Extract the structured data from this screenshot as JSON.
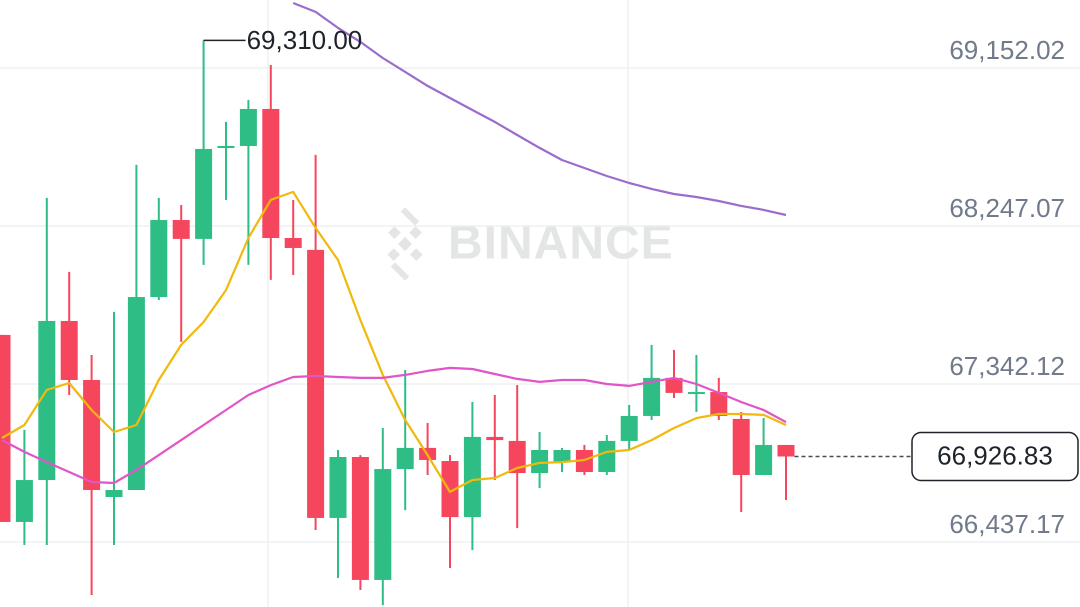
{
  "chart_data": {
    "type": "candlestick",
    "watermark": "BINANCE",
    "up_color": "#2ebd85",
    "down_color": "#f6465d",
    "open": [
      67623,
      66552,
      66792,
      67703,
      67365,
      66695,
      66735,
      67840,
      68281,
      68173,
      68694,
      68705,
      68917,
      68178,
      68110,
      66575,
      66924,
      66220,
      66855,
      66976,
      66901,
      66580,
      67039,
      67016,
      66832,
      66895,
      66964,
      66838,
      67016,
      67159,
      67377,
      67285,
      67296,
      67142,
      66821,
      66993
    ],
    "high": [
      67623,
      67079,
      68408,
      67984,
      67508,
      67755,
      68597,
      68408,
      68367,
      69310,
      68843,
      68969,
      69169,
      68396,
      68654,
      66964,
      66935,
      67090,
      67422,
      67119,
      66935,
      67239,
      67279,
      67336,
      67067,
      66976,
      66993,
      67050,
      67222,
      67566,
      67537,
      67508,
      67377,
      67182,
      67147,
      66993
    ],
    "low": [
      66552,
      66420,
      66420,
      67279,
      66134,
      66420,
      66735,
      67823,
      67583,
      68024,
      68396,
      68024,
      67938,
      67966,
      66506,
      66231,
      66162,
      66076,
      66620,
      66821,
      66288,
      66391,
      66792,
      66517,
      66746,
      66838,
      66821,
      66821,
      66964,
      67136,
      67262,
      67182,
      67136,
      66609,
      66821,
      66678
    ],
    "close": [
      66552,
      66792,
      67703,
      67365,
      66735,
      66735,
      67840,
      68281,
      68173,
      68688,
      68705,
      68917,
      68178,
      68121,
      66575,
      66924,
      66220,
      66855,
      66976,
      66907,
      66580,
      67039,
      67021,
      66832,
      66964,
      66964,
      66838,
      67016,
      67159,
      67377,
      67291,
      67296,
      67159,
      66821,
      66993,
      66926.83
    ],
    "moving_averages": [
      {
        "color": "#f0b90b",
        "values": [
          67033,
          67107,
          67308,
          67348,
          67193,
          67067,
          67107,
          67365,
          67566,
          67697,
          67880,
          68178,
          68396,
          68442,
          68236,
          68052,
          67708,
          67394,
          67136,
          66935,
          66724,
          66792,
          66804,
          66861,
          66890,
          66895,
          66907,
          66953,
          66964,
          67021,
          67090,
          67147,
          67170,
          67170,
          67165,
          67107
        ]
      },
      {
        "color": "#e056c8",
        "values": [
          67021,
          66953,
          66895,
          66838,
          66781,
          66775,
          66850,
          66935,
          67021,
          67107,
          67193,
          67279,
          67336,
          67382,
          67388,
          67382,
          67377,
          67377,
          67394,
          67417,
          67434,
          67428,
          67399,
          67371,
          67354,
          67365,
          67365,
          67342,
          67331,
          67354,
          67377,
          67342,
          67291,
          67239,
          67193,
          67124
        ]
      },
      {
        "color": "#9c6ccd",
        "values": [
          null,
          null,
          null,
          null,
          null,
          null,
          null,
          null,
          null,
          null,
          null,
          null,
          null,
          69524,
          69473,
          69381,
          69301,
          69209,
          69129,
          69049,
          68980,
          68911,
          68843,
          68768,
          68694,
          68625,
          68579,
          68533,
          68493,
          68459,
          68430,
          68413,
          68390,
          68362,
          68339,
          68310
        ]
      }
    ],
    "ylim": [
      66065,
      69541
    ],
    "yticks": [
      {
        "value": 69152.02,
        "label": "69,152.02"
      },
      {
        "value": 68247.07,
        "label": "68,247.07"
      },
      {
        "value": 67342.12,
        "label": "67,342.12"
      },
      {
        "value": 66437.17,
        "label": "66,437.17"
      }
    ],
    "grid": true,
    "high_annotation": {
      "value": 69310,
      "label": "69,310.00"
    },
    "last_price": {
      "value": 66926.83,
      "label": "66,926.83"
    }
  }
}
